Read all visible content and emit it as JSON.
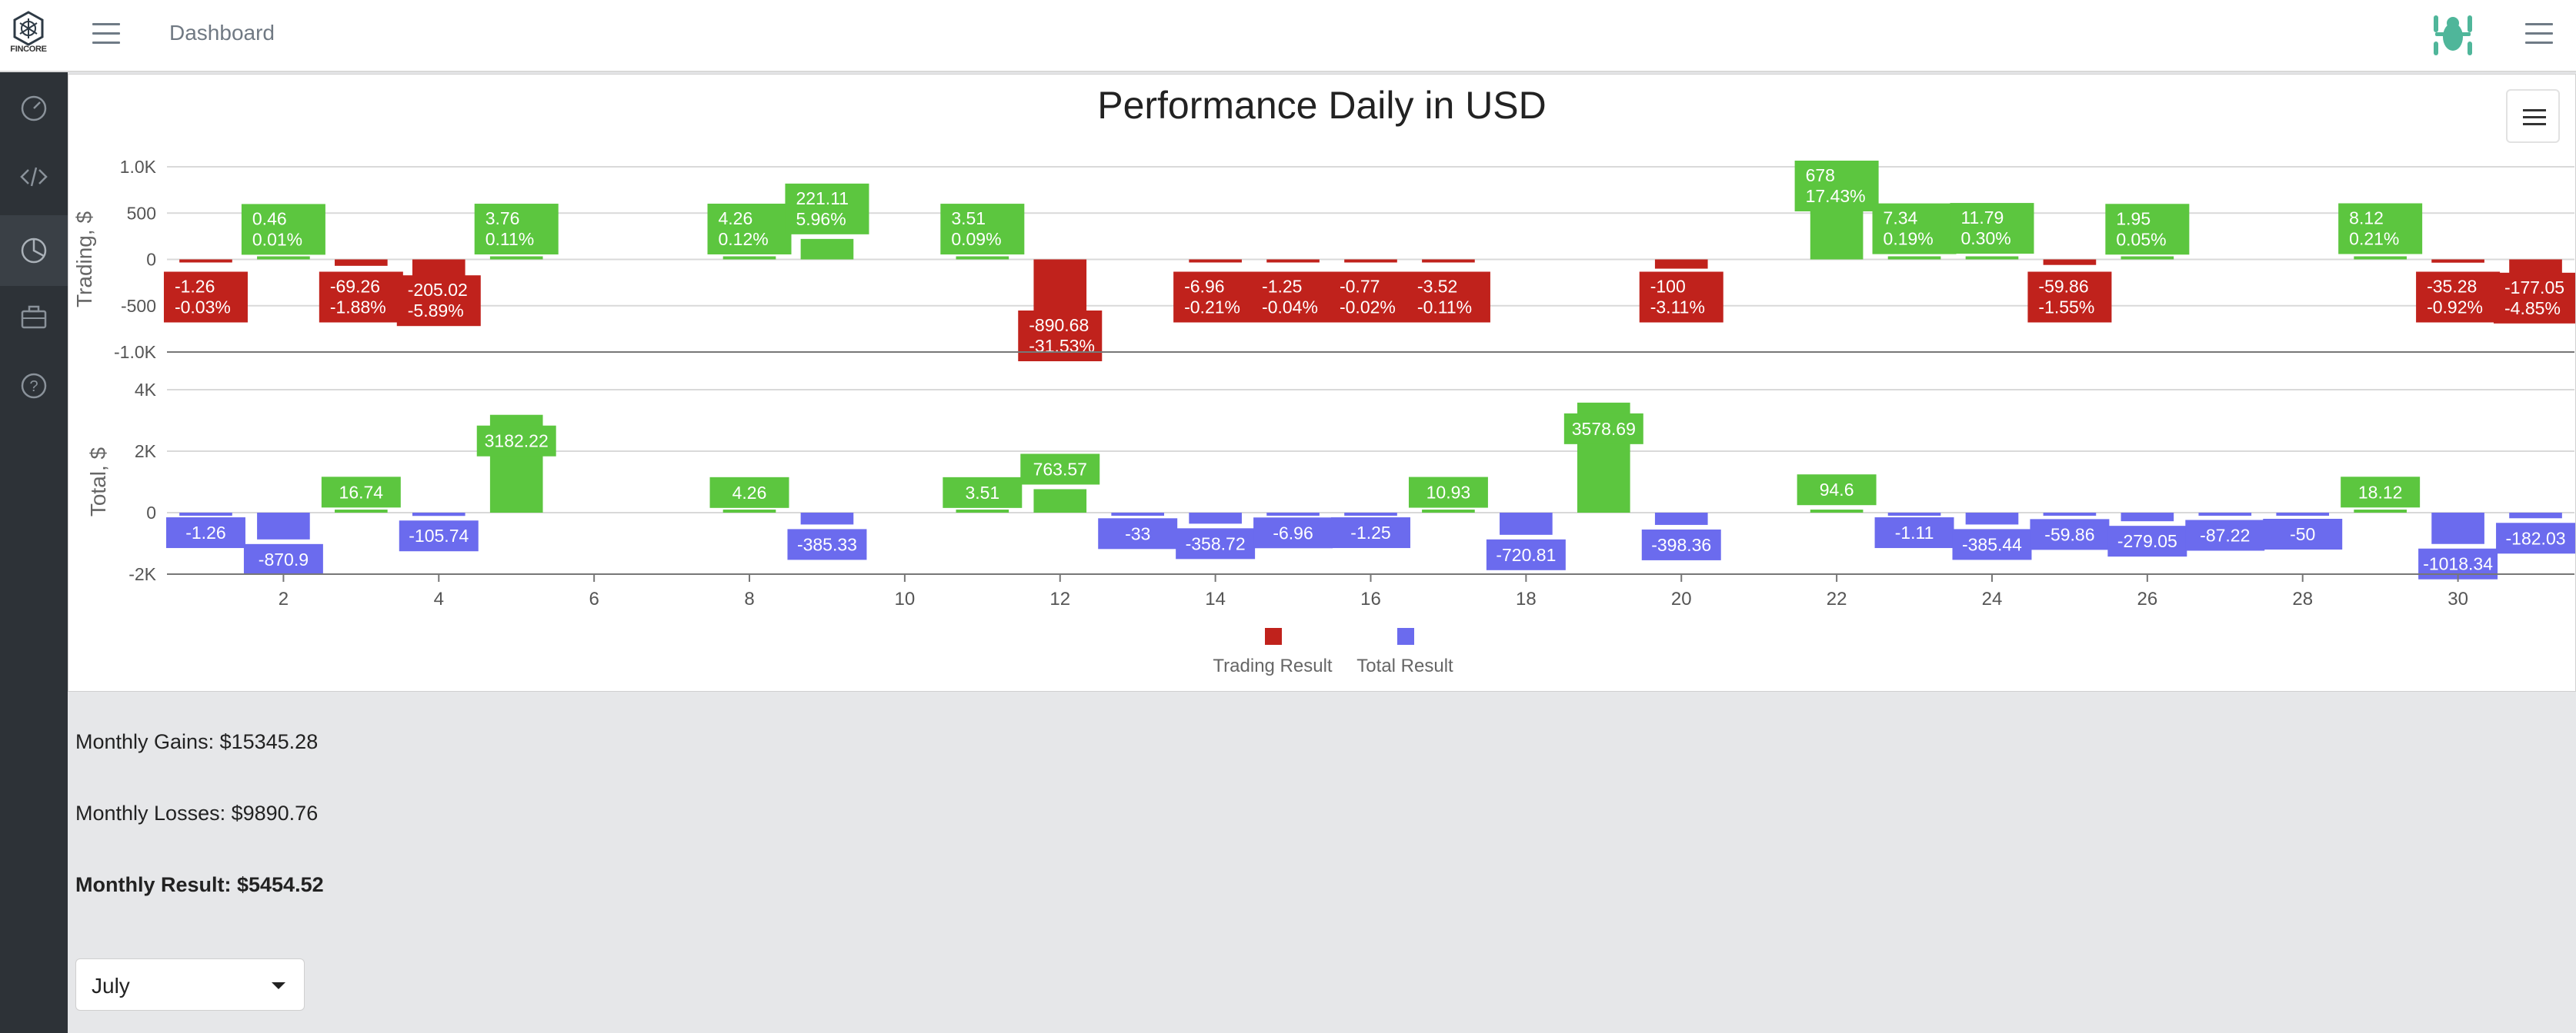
{
  "header": {
    "logo_text": "FINCORE",
    "title": "Dashboard"
  },
  "sidebar": {
    "items": [
      {
        "icon": "speedometer-icon",
        "interactable": true
      },
      {
        "icon": "code-icon",
        "interactable": true
      },
      {
        "icon": "pie-chart-icon",
        "interactable": true,
        "active": true
      },
      {
        "icon": "briefcase-icon",
        "interactable": true
      },
      {
        "icon": "help-icon",
        "interactable": true
      }
    ]
  },
  "colors": {
    "trading_loss": "#c0221c",
    "trading_gain": "#5cc63f",
    "total_neg": "#6b6bee",
    "total_pos": "#5cc63f",
    "sidebar": "#2d3237"
  },
  "chart_data": {
    "type": "bar",
    "title": "Performance Daily in USD",
    "x_ticks": [
      2,
      4,
      6,
      8,
      10,
      12,
      14,
      16,
      18,
      20,
      22,
      24,
      26,
      28,
      30
    ],
    "x_range": [
      0.5,
      31.5
    ],
    "legend_position": "bottom",
    "legend": [
      "Trading Result",
      "Total Result"
    ],
    "panels": [
      {
        "ylabel": "Trading, $",
        "ylim": [
          -1000,
          1000
        ],
        "y_ticks": [
          {
            "v": 1000,
            "t": "1.0K"
          },
          {
            "v": 500,
            "t": "500"
          },
          {
            "v": 0,
            "t": "0"
          },
          {
            "v": -500,
            "t": "-500"
          },
          {
            "v": -1000,
            "t": "-1.0K"
          }
        ],
        "series_name": "Trading Result",
        "points": [
          {
            "x": 1,
            "v": -1.26,
            "l1": "-1.26",
            "l2": "-0.03%"
          },
          {
            "x": 2,
            "v": 0.46,
            "l1": "0.46",
            "l2": "0.01%"
          },
          {
            "x": 3,
            "v": -69.26,
            "l1": "-69.26",
            "l2": "-1.88%"
          },
          {
            "x": 4,
            "v": -205.02,
            "l1": "-205.02",
            "l2": "-5.89%"
          },
          {
            "x": 5,
            "v": 3.76,
            "l1": "3.76",
            "l2": "0.11%"
          },
          {
            "x": 8,
            "v": 4.26,
            "l1": "4.26",
            "l2": "0.12%"
          },
          {
            "x": 9,
            "v": 221.11,
            "l1": "221.11",
            "l2": "5.96%"
          },
          {
            "x": 11,
            "v": 3.51,
            "l1": "3.51",
            "l2": "0.09%"
          },
          {
            "x": 12,
            "v": -890.68,
            "l1": "-890.68",
            "l2": "-31.53%"
          },
          {
            "x": 14,
            "v": -6.96,
            "l1": "-6.96",
            "l2": "-0.21%"
          },
          {
            "x": 15,
            "v": -1.25,
            "l1": "-1.25",
            "l2": "-0.04%"
          },
          {
            "x": 16,
            "v": -0.77,
            "l1": "-0.77",
            "l2": "-0.02%"
          },
          {
            "x": 17,
            "v": -3.52,
            "l1": "-3.52",
            "l2": "-0.11%"
          },
          {
            "x": 20,
            "v": -100,
            "l1": "-100",
            "l2": "-3.11%"
          },
          {
            "x": 22,
            "v": 678,
            "l1": "678",
            "l2": "17.43%"
          },
          {
            "x": 23,
            "v": 7.34,
            "l1": "7.34",
            "l2": "0.19%"
          },
          {
            "x": 24,
            "v": 11.79,
            "l1": "11.79",
            "l2": "0.30%"
          },
          {
            "x": 25,
            "v": -59.86,
            "l1": "-59.86",
            "l2": "-1.55%"
          },
          {
            "x": 26,
            "v": 1.95,
            "l1": "1.95",
            "l2": "0.05%"
          },
          {
            "x": 29,
            "v": 8.12,
            "l1": "8.12",
            "l2": "0.21%"
          },
          {
            "x": 30,
            "v": -35.28,
            "l1": "-35.28",
            "l2": "-0.92%"
          },
          {
            "x": 31,
            "v": -177.05,
            "l1": "-177.05",
            "l2": "-4.85%"
          }
        ]
      },
      {
        "ylabel": "Total, $",
        "ylim": [
          -2000,
          4000
        ],
        "y_ticks": [
          {
            "v": 4000,
            "t": "4K"
          },
          {
            "v": 2000,
            "t": "2K"
          },
          {
            "v": 0,
            "t": "0"
          },
          {
            "v": -2000,
            "t": "-2K"
          }
        ],
        "series_name": "Total Result",
        "points": [
          {
            "x": 1,
            "v": -1.26,
            "l1": "-1.26"
          },
          {
            "x": 2,
            "v": -870.9,
            "l1": "-870.9"
          },
          {
            "x": 3,
            "v": 16.74,
            "l1": "16.74"
          },
          {
            "x": 4,
            "v": -105.74,
            "l1": "-105.74"
          },
          {
            "x": 5,
            "v": 3182.22,
            "l1": "3182.22"
          },
          {
            "x": 8,
            "v": 4.26,
            "l1": "4.26"
          },
          {
            "x": 9,
            "v": -385.33,
            "l1": "-385.33"
          },
          {
            "x": 11,
            "v": 3.51,
            "l1": "3.51"
          },
          {
            "x": 12,
            "v": 763.57,
            "l1": "763.57"
          },
          {
            "x": 13,
            "v": -33,
            "l1": "-33"
          },
          {
            "x": 14,
            "v": -358.72,
            "l1": "-358.72"
          },
          {
            "x": 15,
            "v": -6.96,
            "l1": "-6.96"
          },
          {
            "x": 16,
            "v": -1.25,
            "l1": "-1.25"
          },
          {
            "x": 17,
            "v": 10.93,
            "l1": "10.93"
          },
          {
            "x": 18,
            "v": -720.81,
            "l1": "-720.81"
          },
          {
            "x": 19,
            "v": 3578.69,
            "l1": "3578.69"
          },
          {
            "x": 20,
            "v": -398.36,
            "l1": "-398.36"
          },
          {
            "x": 22,
            "v": 94.6,
            "l1": "94.6"
          },
          {
            "x": 23,
            "v": -1.11,
            "l1": "-1.11"
          },
          {
            "x": 24,
            "v": -385.44,
            "l1": "-385.44"
          },
          {
            "x": 25,
            "v": -59.86,
            "l1": "-59.86"
          },
          {
            "x": 26,
            "v": -279.05,
            "l1": "-279.05"
          },
          {
            "x": 27,
            "v": -87.22,
            "l1": "-87.22"
          },
          {
            "x": 28,
            "v": -50,
            "l1": "-50"
          },
          {
            "x": 29,
            "v": 18.12,
            "l1": "18.12"
          },
          {
            "x": 30,
            "v": -1018.34,
            "l1": "-1018.34"
          },
          {
            "x": 31,
            "v": -182.03,
            "l1": "-182.03"
          }
        ]
      }
    ]
  },
  "stats": {
    "gains": "Monthly Gains: $15345.28",
    "losses": "Monthly Losses: $9890.76",
    "result": "Monthly Result: $5454.52"
  },
  "month_select": {
    "value": "July"
  }
}
